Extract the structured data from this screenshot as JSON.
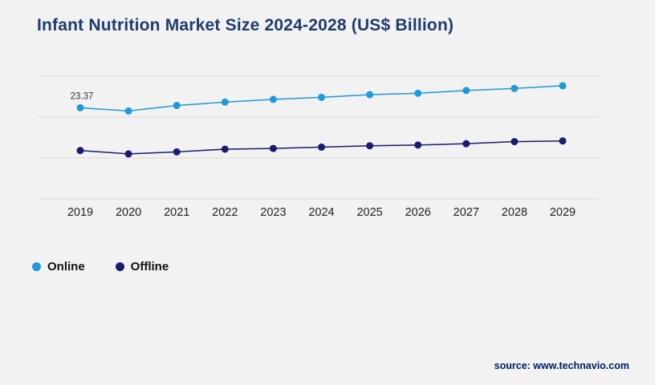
{
  "title": "Infant Nutrition Market Size 2024-2028 (US$ Billion)",
  "source": "source: www.technavio.com",
  "colors": {
    "background": "#f2f2f2",
    "title": "#1f3c6e",
    "grid": "#d9d9d9",
    "online": "#1e9ad6",
    "offline": "#1b1b6f",
    "axis_label": "#222222",
    "data_label": "#333333",
    "source_text": "#002060"
  },
  "legend": [
    {
      "label": "Online",
      "color": "#1e9ad6"
    },
    {
      "label": "Offline",
      "color": "#1b1b6f"
    }
  ],
  "chart_data": {
    "type": "line",
    "title": "Infant Nutrition Market Size 2024-2028 (US$ Billion)",
    "categories": [
      "2019",
      "2020",
      "2021",
      "2022",
      "2023",
      "2024",
      "2025",
      "2026",
      "2027",
      "2028",
      "2029"
    ],
    "series": [
      {
        "name": "Online",
        "color": "#1e9ad6",
        "values": [
          23.37,
          22.9,
          23.7,
          24.2,
          24.6,
          24.9,
          25.3,
          25.5,
          25.9,
          26.2,
          26.6
        ]
      },
      {
        "name": "Offline",
        "color": "#1b1b6f",
        "values": [
          17.1,
          16.6,
          16.9,
          17.3,
          17.4,
          17.6,
          17.8,
          17.9,
          18.1,
          18.4,
          18.5
        ]
      }
    ],
    "annotations": [
      {
        "text": "23.37",
        "series": "Online",
        "category": "2019"
      }
    ],
    "xlabel": "",
    "ylabel": "",
    "ylim": [
      10,
      28
    ],
    "grid": true,
    "y_tick_labels_visible": false,
    "legend_position": "bottom-left"
  }
}
